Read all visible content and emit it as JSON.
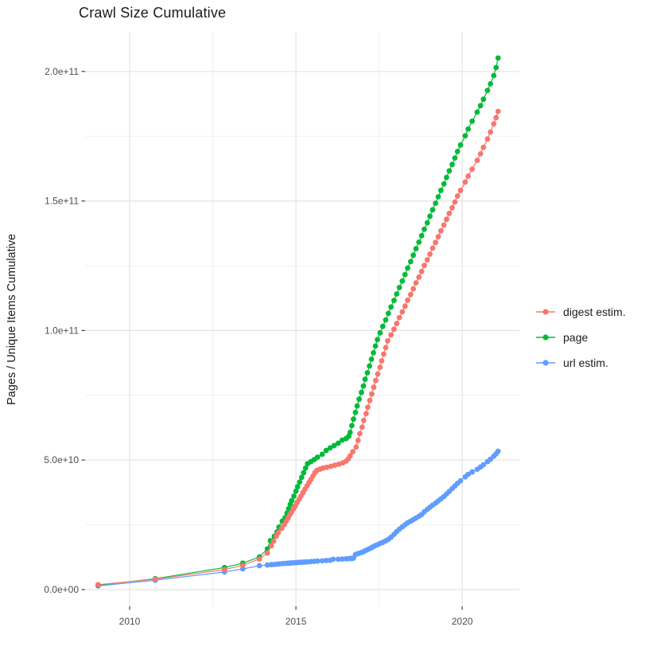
{
  "chart_data": {
    "type": "line",
    "title": "Crawl Size Cumulative",
    "xlabel": "",
    "ylabel": "Pages / Unique Items Cumulative",
    "grid": true,
    "legend_position": "right",
    "background": "#ffffff",
    "major_grid_color": "#e3e3e3",
    "minor_grid_color": "#f0f0f0",
    "tick_color": "#333333",
    "tick_label_color": "#4d4d4d",
    "values_unit": "1e9 pages (billions)",
    "x_axis": {
      "range": [
        2008.66,
        2021.72
      ],
      "ticks": [
        2010,
        2015,
        2020
      ],
      "tick_labels": [
        "2010",
        "2015",
        "2020"
      ],
      "minor_ticks": [
        2012.5,
        2017.5
      ]
    },
    "y_axis": {
      "range_e9": [
        -6.45,
        215.3
      ],
      "ticks_e9": [
        0,
        50,
        100,
        150,
        200
      ],
      "tick_labels": [
        "0.0e+00",
        "5.0e+10",
        "1.0e+11",
        "1.5e+11",
        "2.0e+11"
      ],
      "minor_ticks_e9": [
        25,
        75,
        125,
        175
      ]
    },
    "series": [
      {
        "name": "digest estim.",
        "color": "#F8766D",
        "points": [
          [
            2009.05,
            1.9
          ],
          [
            2010.77,
            4.0
          ],
          [
            2012.85,
            7.7
          ],
          [
            2013.4,
            9.4
          ],
          [
            2013.9,
            11.8
          ],
          [
            2014.14,
            14.1
          ],
          [
            2014.26,
            16.9
          ],
          [
            2014.33,
            18.7
          ],
          [
            2014.41,
            20.6
          ],
          [
            2014.47,
            22.0
          ],
          [
            2014.57,
            23.6
          ],
          [
            2014.65,
            25.1
          ],
          [
            2014.71,
            26.4
          ],
          [
            2014.77,
            27.7
          ],
          [
            2014.82,
            29.0
          ],
          [
            2014.87,
            30.0
          ],
          [
            2014.93,
            31.2
          ],
          [
            2014.98,
            32.2
          ],
          [
            2015.03,
            33.6
          ],
          [
            2015.1,
            34.9
          ],
          [
            2015.15,
            36.1
          ],
          [
            2015.21,
            37.4
          ],
          [
            2015.27,
            38.7
          ],
          [
            2015.33,
            40.0
          ],
          [
            2015.39,
            41.3
          ],
          [
            2015.45,
            42.5
          ],
          [
            2015.51,
            43.8
          ],
          [
            2015.57,
            45.1
          ],
          [
            2015.63,
            46.0
          ],
          [
            2015.72,
            46.5
          ],
          [
            2015.81,
            46.9
          ],
          [
            2015.93,
            47.2
          ],
          [
            2016.05,
            47.6
          ],
          [
            2016.17,
            48.0
          ],
          [
            2016.29,
            48.4
          ],
          [
            2016.41,
            48.9
          ],
          [
            2016.51,
            49.6
          ],
          [
            2016.57,
            50.4
          ],
          [
            2016.63,
            51.6
          ],
          [
            2016.71,
            53.2
          ],
          [
            2016.81,
            55.0
          ],
          [
            2016.87,
            57.6
          ],
          [
            2016.92,
            60.2
          ],
          [
            2016.99,
            62.7
          ],
          [
            2017.04,
            65.3
          ],
          [
            2017.11,
            67.9
          ],
          [
            2017.16,
            70.4
          ],
          [
            2017.22,
            73.0
          ],
          [
            2017.28,
            75.5
          ],
          [
            2017.34,
            78.1
          ],
          [
            2017.4,
            80.7
          ],
          [
            2017.46,
            83.2
          ],
          [
            2017.53,
            85.8
          ],
          [
            2017.58,
            88.3
          ],
          [
            2017.64,
            90.9
          ],
          [
            2017.7,
            93.4
          ],
          [
            2017.76,
            96.0
          ],
          [
            2017.86,
            98.3
          ],
          [
            2017.95,
            100.5
          ],
          [
            2018.03,
            102.7
          ],
          [
            2018.11,
            105.0
          ],
          [
            2018.2,
            107.2
          ],
          [
            2018.28,
            109.4
          ],
          [
            2018.36,
            111.7
          ],
          [
            2018.45,
            113.9
          ],
          [
            2018.53,
            116.1
          ],
          [
            2018.61,
            118.4
          ],
          [
            2018.7,
            120.6
          ],
          [
            2018.78,
            122.8
          ],
          [
            2018.86,
            125.1
          ],
          [
            2018.95,
            127.3
          ],
          [
            2019.03,
            129.5
          ],
          [
            2019.11,
            131.8
          ],
          [
            2019.2,
            134.0
          ],
          [
            2019.28,
            136.2
          ],
          [
            2019.36,
            138.5
          ],
          [
            2019.45,
            140.7
          ],
          [
            2019.53,
            142.9
          ],
          [
            2019.61,
            145.2
          ],
          [
            2019.7,
            147.4
          ],
          [
            2019.78,
            149.6
          ],
          [
            2019.86,
            151.9
          ],
          [
            2019.95,
            154.1
          ],
          [
            2020.09,
            157.3
          ],
          [
            2020.18,
            159.6
          ],
          [
            2020.3,
            162.3
          ],
          [
            2020.45,
            165.7
          ],
          [
            2020.55,
            168.2
          ],
          [
            2020.64,
            170.7
          ],
          [
            2020.76,
            173.9
          ],
          [
            2020.85,
            176.6
          ],
          [
            2020.95,
            179.8
          ],
          [
            2021.02,
            182.2
          ],
          [
            2021.08,
            184.6
          ]
        ]
      },
      {
        "name": "page",
        "color": "#00BA38",
        "points": [
          [
            2009.05,
            1.7
          ],
          [
            2010.77,
            4.2
          ],
          [
            2012.85,
            8.5
          ],
          [
            2013.4,
            10.2
          ],
          [
            2013.9,
            12.6
          ],
          [
            2014.14,
            15.7
          ],
          [
            2014.23,
            18.9
          ],
          [
            2014.35,
            20.6
          ],
          [
            2014.43,
            22.3
          ],
          [
            2014.49,
            24.1
          ],
          [
            2014.59,
            26.4
          ],
          [
            2014.67,
            27.7
          ],
          [
            2014.73,
            29.5
          ],
          [
            2014.78,
            31.2
          ],
          [
            2014.83,
            32.9
          ],
          [
            2014.87,
            34.3
          ],
          [
            2014.94,
            36.1
          ],
          [
            2015.0,
            38.0
          ],
          [
            2015.05,
            39.7
          ],
          [
            2015.11,
            41.5
          ],
          [
            2015.17,
            43.3
          ],
          [
            2015.23,
            45.1
          ],
          [
            2015.29,
            46.9
          ],
          [
            2015.35,
            48.6
          ],
          [
            2015.45,
            49.4
          ],
          [
            2015.55,
            50.2
          ],
          [
            2015.65,
            51.1
          ],
          [
            2015.79,
            52.2
          ],
          [
            2015.91,
            53.7
          ],
          [
            2016.03,
            54.7
          ],
          [
            2016.15,
            55.6
          ],
          [
            2016.27,
            56.5
          ],
          [
            2016.39,
            57.7
          ],
          [
            2016.51,
            58.3
          ],
          [
            2016.59,
            59.2
          ],
          [
            2016.63,
            60.7
          ],
          [
            2016.68,
            63.3
          ],
          [
            2016.73,
            65.8
          ],
          [
            2016.79,
            68.4
          ],
          [
            2016.84,
            70.9
          ],
          [
            2016.9,
            73.5
          ],
          [
            2016.97,
            76.1
          ],
          [
            2017.03,
            78.6
          ],
          [
            2017.08,
            81.2
          ],
          [
            2017.15,
            83.7
          ],
          [
            2017.21,
            86.3
          ],
          [
            2017.27,
            88.9
          ],
          [
            2017.33,
            91.4
          ],
          [
            2017.39,
            94.0
          ],
          [
            2017.45,
            96.5
          ],
          [
            2017.53,
            99.1
          ],
          [
            2017.61,
            101.6
          ],
          [
            2017.7,
            104.1
          ],
          [
            2017.78,
            106.6
          ],
          [
            2017.86,
            109.1
          ],
          [
            2017.95,
            111.6
          ],
          [
            2018.03,
            114.1
          ],
          [
            2018.11,
            116.6
          ],
          [
            2018.2,
            119.1
          ],
          [
            2018.28,
            121.6
          ],
          [
            2018.36,
            124.1
          ],
          [
            2018.45,
            126.6
          ],
          [
            2018.53,
            129.1
          ],
          [
            2018.61,
            131.6
          ],
          [
            2018.7,
            134.1
          ],
          [
            2018.78,
            136.6
          ],
          [
            2018.86,
            139.1
          ],
          [
            2018.95,
            141.6
          ],
          [
            2019.03,
            144.1
          ],
          [
            2019.11,
            146.6
          ],
          [
            2019.2,
            149.1
          ],
          [
            2019.28,
            151.6
          ],
          [
            2019.36,
            154.1
          ],
          [
            2019.45,
            156.6
          ],
          [
            2019.53,
            159.1
          ],
          [
            2019.61,
            161.6
          ],
          [
            2019.7,
            164.1
          ],
          [
            2019.78,
            166.6
          ],
          [
            2019.86,
            169.1
          ],
          [
            2019.95,
            171.6
          ],
          [
            2020.09,
            175.2
          ],
          [
            2020.18,
            177.8
          ],
          [
            2020.3,
            180.8
          ],
          [
            2020.45,
            184.3
          ],
          [
            2020.55,
            186.8
          ],
          [
            2020.64,
            189.3
          ],
          [
            2020.76,
            192.7
          ],
          [
            2020.85,
            195.2
          ],
          [
            2020.95,
            198.4
          ],
          [
            2021.02,
            201.5
          ],
          [
            2021.08,
            205.2
          ]
        ]
      },
      {
        "name": "url estim.",
        "color": "#619CFF",
        "points": [
          [
            2009.05,
            1.4
          ],
          [
            2010.77,
            3.6
          ],
          [
            2012.85,
            6.8
          ],
          [
            2013.4,
            8.0
          ],
          [
            2013.9,
            9.2
          ],
          [
            2014.14,
            9.5
          ],
          [
            2014.26,
            9.6
          ],
          [
            2014.35,
            9.7
          ],
          [
            2014.43,
            9.8
          ],
          [
            2014.49,
            9.9
          ],
          [
            2014.59,
            10.0
          ],
          [
            2014.67,
            10.1
          ],
          [
            2014.73,
            10.15
          ],
          [
            2014.78,
            10.2
          ],
          [
            2014.83,
            10.25
          ],
          [
            2014.87,
            10.3
          ],
          [
            2014.94,
            10.35
          ],
          [
            2015.0,
            10.4
          ],
          [
            2015.05,
            10.45
          ],
          [
            2015.11,
            10.5
          ],
          [
            2015.17,
            10.55
          ],
          [
            2015.23,
            10.6
          ],
          [
            2015.29,
            10.65
          ],
          [
            2015.35,
            10.7
          ],
          [
            2015.45,
            10.8
          ],
          [
            2015.55,
            10.9
          ],
          [
            2015.65,
            11.0
          ],
          [
            2015.79,
            11.1
          ],
          [
            2015.91,
            11.2
          ],
          [
            2016.03,
            11.3
          ],
          [
            2016.12,
            11.7
          ],
          [
            2016.27,
            11.7
          ],
          [
            2016.39,
            11.8
          ],
          [
            2016.51,
            11.9
          ],
          [
            2016.59,
            11.95
          ],
          [
            2016.63,
            12.0
          ],
          [
            2016.68,
            12.05
          ],
          [
            2016.73,
            12.1
          ],
          [
            2016.79,
            13.5
          ],
          [
            2016.84,
            13.8
          ],
          [
            2016.9,
            14.0
          ],
          [
            2016.97,
            14.3
          ],
          [
            2017.03,
            14.6
          ],
          [
            2017.08,
            15.0
          ],
          [
            2017.15,
            15.4
          ],
          [
            2017.21,
            15.8
          ],
          [
            2017.27,
            16.2
          ],
          [
            2017.33,
            16.6
          ],
          [
            2017.39,
            17.0
          ],
          [
            2017.45,
            17.3
          ],
          [
            2017.53,
            17.8
          ],
          [
            2017.61,
            18.2
          ],
          [
            2017.7,
            18.8
          ],
          [
            2017.78,
            19.4
          ],
          [
            2017.86,
            20.2
          ],
          [
            2017.95,
            21.3
          ],
          [
            2018.03,
            22.4
          ],
          [
            2018.11,
            23.3
          ],
          [
            2018.2,
            24.2
          ],
          [
            2018.28,
            25.0
          ],
          [
            2018.36,
            25.8
          ],
          [
            2018.45,
            26.4
          ],
          [
            2018.53,
            27.0
          ],
          [
            2018.61,
            27.6
          ],
          [
            2018.7,
            28.3
          ],
          [
            2018.78,
            29.0
          ],
          [
            2018.86,
            30.0
          ],
          [
            2018.95,
            31.0
          ],
          [
            2019.03,
            31.8
          ],
          [
            2019.11,
            32.6
          ],
          [
            2019.2,
            33.4
          ],
          [
            2019.28,
            34.2
          ],
          [
            2019.36,
            35.0
          ],
          [
            2019.45,
            35.9
          ],
          [
            2019.53,
            36.9
          ],
          [
            2019.61,
            37.9
          ],
          [
            2019.7,
            39.0
          ],
          [
            2019.78,
            40.0
          ],
          [
            2019.86,
            41.0
          ],
          [
            2019.95,
            42.0
          ],
          [
            2020.09,
            43.5
          ],
          [
            2020.18,
            44.5
          ],
          [
            2020.3,
            45.4
          ],
          [
            2020.45,
            46.4
          ],
          [
            2020.55,
            47.3
          ],
          [
            2020.64,
            48.2
          ],
          [
            2020.76,
            49.4
          ],
          [
            2020.85,
            50.3
          ],
          [
            2020.95,
            51.5
          ],
          [
            2021.02,
            52.4
          ],
          [
            2021.08,
            53.4
          ]
        ]
      }
    ]
  },
  "legend": {
    "items": [
      {
        "label": "digest estim.",
        "color": "#F8766D"
      },
      {
        "label": "page",
        "color": "#00BA38"
      },
      {
        "label": "url estim.",
        "color": "#619CFF"
      }
    ]
  }
}
